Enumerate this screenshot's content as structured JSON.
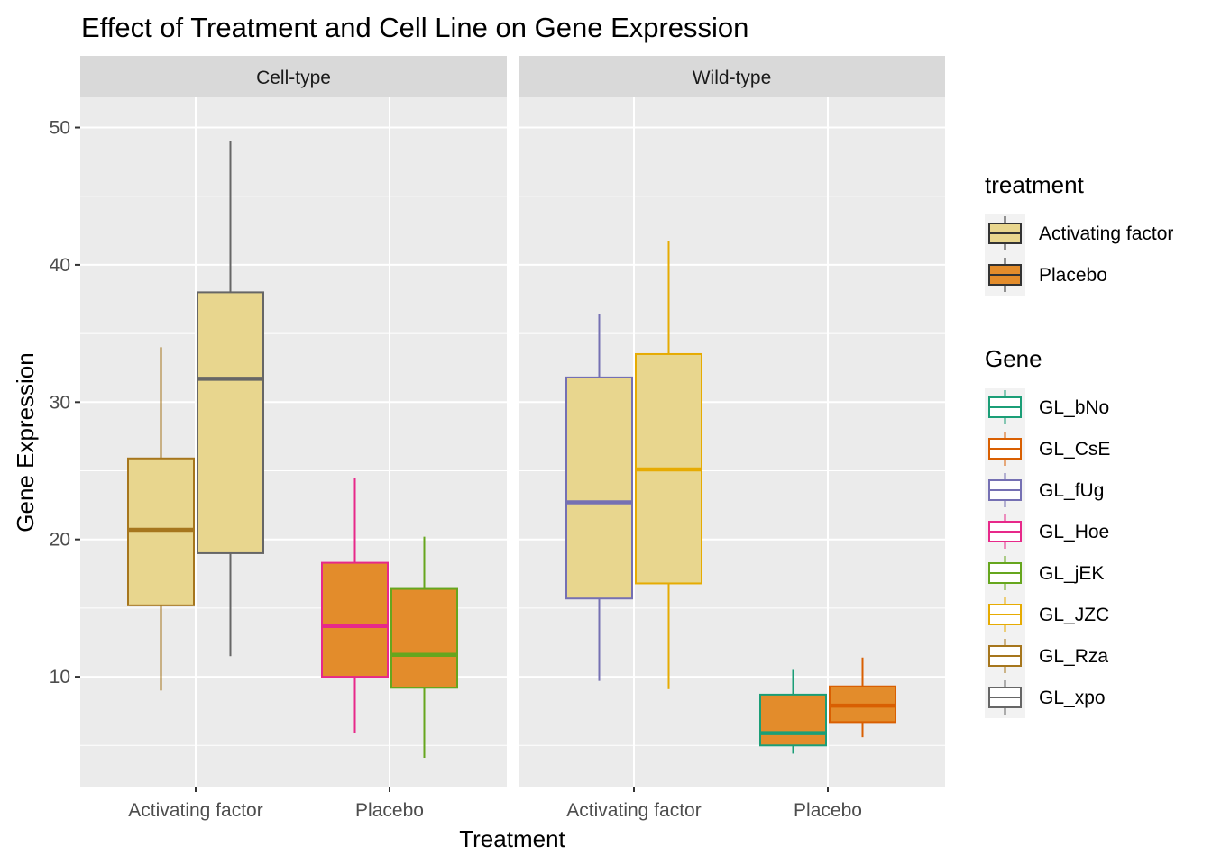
{
  "chart_data": {
    "type": "box",
    "title": "Effect of Treatment and Cell Line on Gene Expression",
    "xlabel": "Treatment",
    "ylabel": "Gene Expression",
    "ylim": [
      2.0,
      52.2
    ],
    "yticks": [
      10,
      20,
      30,
      40,
      50
    ],
    "ytick_labels": [
      "10",
      "20",
      "30",
      "40",
      "50"
    ],
    "categories": [
      "Activating factor",
      "Placebo"
    ],
    "facets": [
      "Cell-type",
      "Wild-type"
    ],
    "fill_legend": {
      "title": "treatment",
      "items": [
        {
          "label": "Activating factor",
          "color": "#E8D68E"
        },
        {
          "label": "Placebo",
          "color": "#E38C2B"
        }
      ]
    },
    "color_legend": {
      "title": "Gene",
      "items": [
        {
          "label": "GL_bNo",
          "color": "#1B9E77"
        },
        {
          "label": "GL_CsE",
          "color": "#D95F02"
        },
        {
          "label": "GL_fUg",
          "color": "#7570B3"
        },
        {
          "label": "GL_Hoe",
          "color": "#E7298A"
        },
        {
          "label": "GL_jEK",
          "color": "#66A61E"
        },
        {
          "label": "GL_JZC",
          "color": "#E6AB02"
        },
        {
          "label": "GL_Rza",
          "color": "#A6761D"
        },
        {
          "label": "GL_xpo",
          "color": "#666666"
        }
      ]
    },
    "boxes": [
      {
        "facet": "Cell-type",
        "treatment": "Activating factor",
        "gene": "GL_Rza",
        "dodge": 0,
        "whisker_low": 9.0,
        "q1": 15.2,
        "median": 20.7,
        "q3": 25.9,
        "whisker_high": 34.0
      },
      {
        "facet": "Cell-type",
        "treatment": "Activating factor",
        "gene": "GL_xpo",
        "dodge": 1,
        "whisker_low": 11.5,
        "q1": 19.0,
        "median": 31.7,
        "q3": 38.0,
        "whisker_high": 49.0
      },
      {
        "facet": "Cell-type",
        "treatment": "Placebo",
        "gene": "GL_Hoe",
        "dodge": 0,
        "whisker_low": 5.9,
        "q1": 10.0,
        "median": 13.7,
        "q3": 18.3,
        "whisker_high": 24.5
      },
      {
        "facet": "Cell-type",
        "treatment": "Placebo",
        "gene": "GL_jEK",
        "dodge": 1,
        "whisker_low": 4.1,
        "q1": 9.2,
        "median": 11.6,
        "q3": 16.4,
        "whisker_high": 20.2
      },
      {
        "facet": "Wild-type",
        "treatment": "Activating factor",
        "gene": "GL_fUg",
        "dodge": 0,
        "whisker_low": 9.7,
        "q1": 15.7,
        "median": 22.7,
        "q3": 31.8,
        "whisker_high": 36.4
      },
      {
        "facet": "Wild-type",
        "treatment": "Activating factor",
        "gene": "GL_JZC",
        "dodge": 1,
        "whisker_low": 9.1,
        "q1": 16.8,
        "median": 25.1,
        "q3": 33.5,
        "whisker_high": 41.7
      },
      {
        "facet": "Wild-type",
        "treatment": "Placebo",
        "gene": "GL_bNo",
        "dodge": 0,
        "whisker_low": 4.4,
        "q1": 5.0,
        "median": 5.9,
        "q3": 8.7,
        "whisker_high": 10.5
      },
      {
        "facet": "Wild-type",
        "treatment": "Placebo",
        "gene": "GL_CsE",
        "dodge": 1,
        "whisker_low": 5.6,
        "q1": 6.7,
        "median": 7.9,
        "q3": 9.3,
        "whisker_high": 11.4
      }
    ]
  }
}
